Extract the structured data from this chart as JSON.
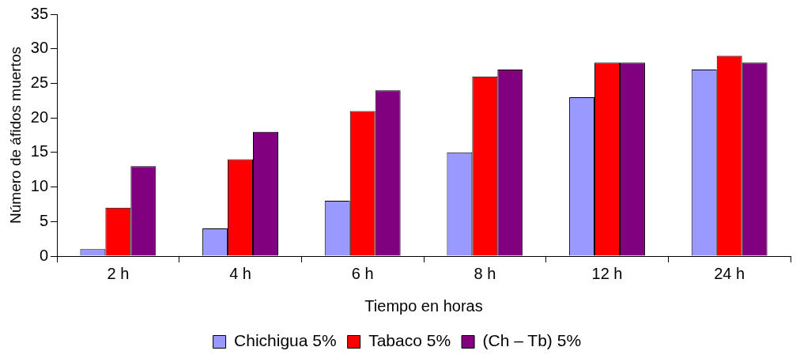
{
  "chart_data": {
    "type": "bar",
    "xlabel": "Tiempo en horas",
    "ylabel": "Número de áfidos muertos",
    "categories": [
      "2 h",
      "4 h",
      "6 h",
      "8 h",
      "12 h",
      "24 h"
    ],
    "series": [
      {
        "name": "Chichigua 5%",
        "color": "#9999ff",
        "values": [
          1,
          4,
          8,
          15,
          23,
          27
        ]
      },
      {
        "name": "Tabaco 5%",
        "color": "#ff0000",
        "values": [
          7,
          14,
          21,
          26,
          28,
          29
        ]
      },
      {
        "name": "(Ch – Tb) 5%",
        "color": "#800080",
        "values": [
          13,
          18,
          24,
          27,
          28,
          28
        ]
      }
    ],
    "ylim": [
      0,
      35
    ],
    "yticks": [
      0,
      5,
      10,
      15,
      20,
      25,
      30,
      35
    ],
    "legend": "bottom"
  }
}
